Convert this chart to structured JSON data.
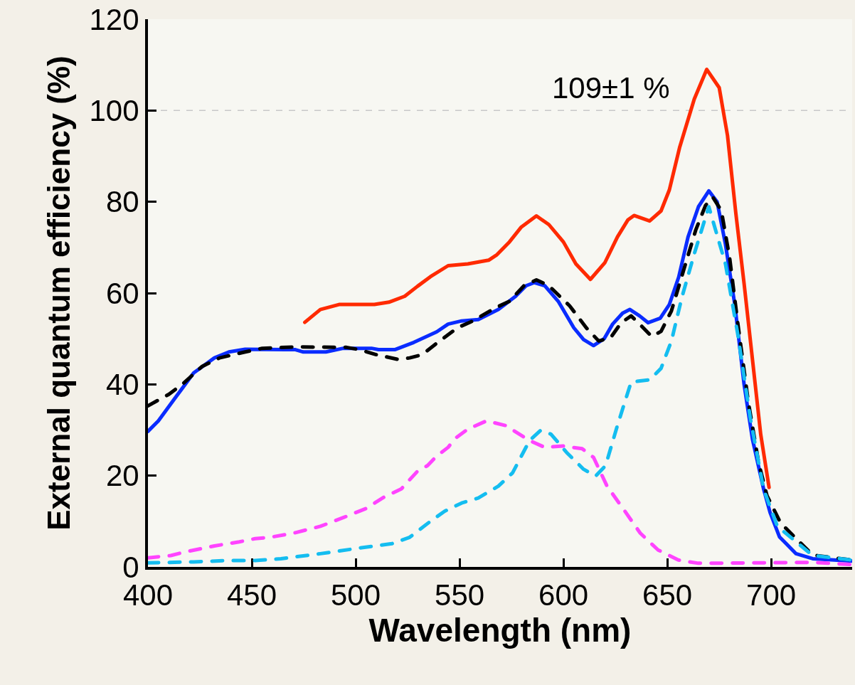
{
  "chart_data": {
    "type": "line",
    "xlabel": "Wavelength (nm)",
    "ylabel": "External quantum efficiency (%)",
    "xlim": [
      400,
      739
    ],
    "xticks": [
      400,
      450,
      500,
      550,
      600,
      650,
      700
    ],
    "ylim": [
      0,
      120
    ],
    "yticks": [
      0,
      20,
      40,
      60,
      80,
      100,
      120
    ],
    "grid": false,
    "marker": "none",
    "ref_lines": [
      {
        "axis": "y",
        "value": 100,
        "color": "#c8c8c8",
        "line_style": "dashed"
      }
    ],
    "annotations": [
      {
        "text": "109±1 %",
        "x": 669,
        "y": 109
      }
    ],
    "series": [
      {
        "color": "#ff2a00",
        "line_style": "solid",
        "x": [
          475.5,
          483,
          492,
          509,
          516,
          523.6,
          529.8,
          536,
          544.5,
          554,
          564,
          568,
          574,
          579.6,
          587,
          593,
          600,
          606,
          613,
          620,
          626,
          631,
          634,
          641.5,
          647,
          651,
          656,
          663,
          669,
          675,
          679,
          683,
          687,
          695,
          699
        ],
        "values": [
          53.6,
          56.4,
          57.5,
          57.5,
          58,
          59.3,
          61.5,
          63.6,
          66,
          66.4,
          67.2,
          68.4,
          71.2,
          74.4,
          76.9,
          75,
          71.2,
          66.4,
          63,
          66.7,
          72.3,
          76,
          77,
          75.8,
          78,
          82.6,
          92,
          102.5,
          109,
          105,
          94.5,
          77.5,
          62,
          29,
          17.4
        ]
      },
      {
        "color": "#0a2cff",
        "line_style": "solid",
        "x": [
          400,
          405,
          413.7,
          422,
          432,
          439,
          446.8,
          466,
          471,
          474.8,
          485.7,
          494,
          507.6,
          511,
          518.8,
          528,
          539,
          544.5,
          551,
          559,
          568.7,
          577,
          582,
          586,
          591,
          597.5,
          605,
          609.7,
          614.5,
          619.6,
          623.7,
          628.5,
          632,
          636.7,
          640.8,
          646.6,
          651,
          655.5,
          660,
          665,
          670,
          674,
          678,
          682.5,
          687,
          691,
          696.4,
          699.5,
          704,
          712,
          720,
          739
        ],
        "values": [
          29.7,
          32,
          37.4,
          42.5,
          45.8,
          47.1,
          47.7,
          47.6,
          47.6,
          47.1,
          47.1,
          47.9,
          47.9,
          47.6,
          47.6,
          49.2,
          51.5,
          53.2,
          53.9,
          54.2,
          56.4,
          59.3,
          61.6,
          62.3,
          61.6,
          58.2,
          52.4,
          49.8,
          48.5,
          50,
          53.2,
          55.6,
          56.4,
          55,
          53.5,
          54.5,
          57.5,
          63.5,
          72.3,
          78.9,
          82.4,
          80,
          70.7,
          57.5,
          39.9,
          28,
          17,
          11.9,
          6.6,
          2.9,
          1.8,
          1.3
        ]
      },
      {
        "color": "#000000",
        "line_style": "dashed",
        "x": [
          400,
          410,
          417,
          426,
          434.5,
          446.8,
          455,
          471,
          495.6,
          501.8,
          510,
          520,
          526,
          532,
          539,
          549,
          556,
          567,
          574,
          581,
          587,
          593,
          603,
          611,
          617,
          622.7,
          627.8,
          632.6,
          636.7,
          642.5,
          647,
          652,
          657.8,
          663.7,
          668.4,
          671.9,
          676,
          680,
          684,
          689,
          694,
          698,
          704.6,
          720,
          739
        ],
        "values": [
          35.3,
          37.8,
          40.2,
          43.9,
          45.8,
          47.1,
          47.9,
          48.2,
          48.1,
          47.6,
          46.5,
          45.5,
          45.8,
          46.5,
          49,
          52.4,
          53.8,
          56.7,
          58.2,
          61.6,
          62.9,
          61.6,
          57.2,
          52.4,
          49.5,
          50.2,
          53.5,
          55,
          53.2,
          50.5,
          51.6,
          56.1,
          64.9,
          73.8,
          79.2,
          81,
          78.1,
          67.8,
          53.2,
          36.2,
          22.8,
          15.6,
          9.6,
          2.6,
          1.5
        ]
      },
      {
        "color": "#14bdf0",
        "line_style": "dashed",
        "x": [
          400,
          422,
          438,
          451.6,
          464,
          483,
          502.8,
          517.5,
          526,
          536,
          542.8,
          551,
          559,
          568.7,
          575.5,
          583.7,
          589,
          594,
          601.5,
          609.7,
          615.5,
          620.3,
          626,
          632.6,
          641.5,
          647,
          652,
          657,
          663,
          670,
          678,
          684,
          690,
          696.4,
          703,
          720,
          739
        ],
        "values": [
          0.9,
          1.1,
          1.4,
          1.4,
          1.8,
          2.9,
          4.2,
          5.1,
          6.5,
          10,
          12.2,
          14,
          15.1,
          17.7,
          20.6,
          27.7,
          29.9,
          29.1,
          25.1,
          21.4,
          19.9,
          22.2,
          31,
          40.5,
          41,
          43.5,
          49.5,
          59,
          68.6,
          78.9,
          66.4,
          50.8,
          32.5,
          17,
          8.9,
          2.5,
          1.5
        ]
      },
      {
        "color": "#ff44ff",
        "line_style": "dashed",
        "x": [
          400,
          411,
          419,
          432,
          444,
          451.6,
          459,
          471,
          483,
          494,
          505,
          513.7,
          522,
          529.8,
          534.6,
          539,
          544.5,
          548,
          554,
          563,
          572,
          583.7,
          591,
          599.8,
          609,
          614.5,
          621,
          629,
          637,
          645.6,
          655.5,
          665,
          698,
          720,
          739
        ],
        "values": [
          2,
          2.5,
          3.4,
          4.6,
          5.5,
          6.2,
          6.5,
          7.5,
          8.9,
          10.8,
          12.8,
          15.3,
          17.1,
          21,
          22.2,
          24.3,
          26.2,
          28.2,
          30.2,
          32,
          31,
          27.7,
          26.2,
          26.5,
          25.9,
          24,
          17.7,
          12.6,
          7.4,
          3.7,
          1.5,
          0.8,
          0.9,
          1,
          0.5
        ]
      }
    ]
  }
}
